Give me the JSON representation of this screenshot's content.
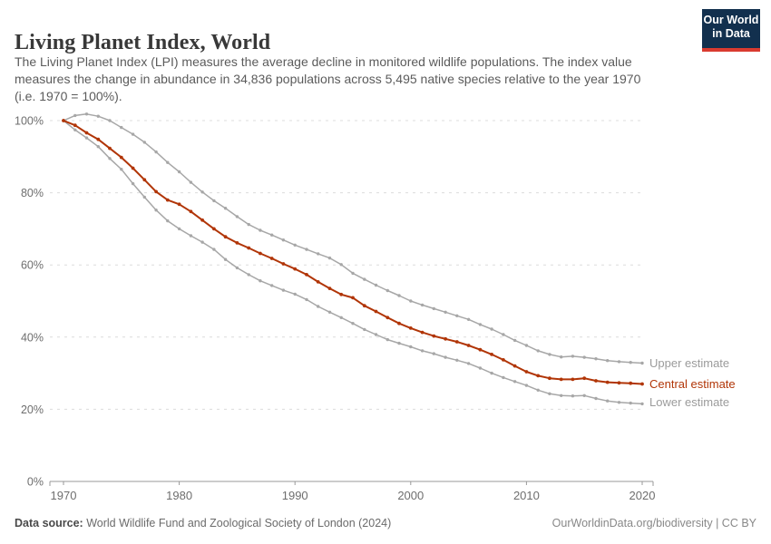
{
  "header": {
    "title": "Living Planet Index, World",
    "subtitle_lines": [
      "The Living Planet Index (LPI) measures the average decline in monitored wildlife populations. The index value",
      "measures the change in abundance in 34,836 populations across 5,495 native species relative to the year 1970",
      "(i.e. 1970 = 100%)."
    ]
  },
  "logo": {
    "line1": "Our World",
    "line2": "in Data",
    "bg_color": "#12304E",
    "accent_color": "#D93B30"
  },
  "chart_data": {
    "type": "line",
    "title": "Living Planet Index, World",
    "xlabel": "",
    "ylabel": "",
    "xlim": [
      1968.8,
      2021
    ],
    "ylim": [
      0,
      105
    ],
    "grid": "horizontal-dashed",
    "legend_position": "right-of-line-ends",
    "x_ticks": [
      1970,
      1980,
      1990,
      2000,
      2010,
      2020
    ],
    "x_tick_labels": [
      "1970",
      "1980",
      "1990",
      "2000",
      "2010",
      "2020"
    ],
    "y_ticks": [
      0,
      20,
      40,
      60,
      80,
      100
    ],
    "y_tick_labels": [
      "0%",
      "20%",
      "40%",
      "60%",
      "80%",
      "100%"
    ],
    "x": [
      1970,
      1971,
      1972,
      1973,
      1974,
      1975,
      1976,
      1977,
      1978,
      1979,
      1980,
      1981,
      1982,
      1983,
      1984,
      1985,
      1986,
      1987,
      1988,
      1989,
      1990,
      1991,
      1992,
      1993,
      1994,
      1995,
      1996,
      1997,
      1998,
      1999,
      2000,
      2001,
      2002,
      2003,
      2004,
      2005,
      2006,
      2007,
      2008,
      2009,
      2010,
      2011,
      2012,
      2013,
      2014,
      2015,
      2016,
      2017,
      2018,
      2019,
      2020
    ],
    "series": [
      {
        "name": "Upper estimate",
        "color": "#A7A7A7",
        "values": [
          100,
          101.4,
          101.8,
          101.2,
          100.0,
          98.1,
          96.2,
          94.0,
          91.3,
          88.4,
          85.8,
          82.9,
          80.2,
          77.8,
          75.7,
          73.4,
          71.2,
          69.6,
          68.3,
          66.9,
          65.5,
          64.3,
          63.1,
          61.9,
          60.1,
          57.7,
          56.0,
          54.4,
          52.9,
          51.5,
          50.0,
          48.9,
          47.9,
          46.9,
          45.9,
          44.9,
          43.5,
          42.2,
          40.7,
          39.1,
          37.7,
          36.2,
          35.2,
          34.5,
          34.7,
          34.4,
          34.0,
          33.5,
          33.2,
          33.0,
          32.8
        ]
      },
      {
        "name": "Central estimate",
        "color": "#B13507",
        "values": [
          100,
          98.7,
          96.6,
          94.8,
          92.3,
          89.8,
          86.8,
          83.6,
          80.3,
          78.0,
          76.8,
          74.8,
          72.4,
          70.0,
          67.8,
          66.1,
          64.7,
          63.2,
          61.8,
          60.3,
          58.9,
          57.3,
          55.3,
          53.5,
          51.8,
          50.9,
          48.7,
          47.1,
          45.4,
          43.8,
          42.5,
          41.3,
          40.3,
          39.5,
          38.7,
          37.7,
          36.5,
          35.2,
          33.7,
          32.0,
          30.4,
          29.3,
          28.6,
          28.3,
          28.3,
          28.6,
          27.9,
          27.5,
          27.3,
          27.2,
          27.0
        ]
      },
      {
        "name": "Lower estimate",
        "color": "#A7A7A7",
        "values": [
          100,
          97.4,
          95.2,
          92.8,
          89.5,
          86.5,
          82.5,
          78.8,
          75.2,
          72.2,
          70.0,
          68.1,
          66.3,
          64.3,
          61.5,
          59.2,
          57.3,
          55.6,
          54.3,
          53.0,
          51.9,
          50.4,
          48.5,
          46.9,
          45.4,
          43.8,
          42.1,
          40.7,
          39.3,
          38.3,
          37.3,
          36.2,
          35.4,
          34.4,
          33.6,
          32.7,
          31.4,
          30.0,
          28.8,
          27.7,
          26.6,
          25.3,
          24.3,
          23.8,
          23.7,
          23.8,
          23.0,
          22.3,
          21.9,
          21.7,
          21.5
        ]
      }
    ]
  },
  "legend": {
    "items": [
      {
        "label": "Upper estimate",
        "color": "#9B9B9B"
      },
      {
        "label": "Central estimate",
        "color": "#B13507"
      },
      {
        "label": "Lower estimate",
        "color": "#9B9B9B"
      }
    ]
  },
  "footer": {
    "source_label": "Data source:",
    "source_text": " World Wildlife Fund and Zoological Society of London (2024)",
    "link_text": "OurWorldinData.org/biodiversity | CC BY"
  },
  "colors": {
    "accent_red": "#B13507",
    "line_gray": "#A7A7A7",
    "gridline": "#DCDCDC",
    "axis": "#999999",
    "tick_text": "#6E6E6E"
  }
}
